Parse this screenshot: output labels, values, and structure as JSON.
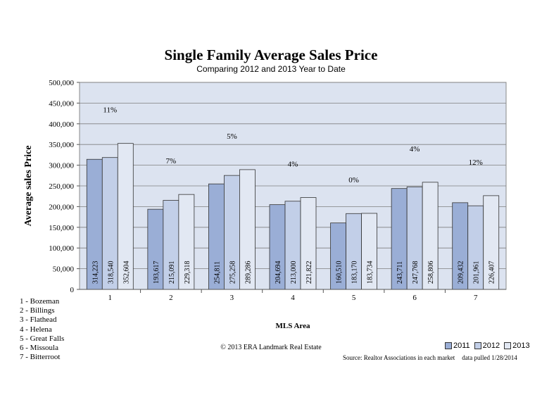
{
  "chart_data": {
    "type": "bar",
    "title": "Single Family Average Sales Price",
    "subtitle": "Comparing 2012 and 2013 Year to Date",
    "xlabel": "MLS Area",
    "ylabel": "Average sales Price",
    "ylim": [
      0,
      500000
    ],
    "yticks": [
      "0",
      "50,000",
      "100,000",
      "150,000",
      "200,000",
      "250,000",
      "300,000",
      "350,000",
      "400,000",
      "450,000",
      "500,000"
    ],
    "categories": [
      "1",
      "2",
      "3",
      "4",
      "5",
      "6",
      "7"
    ],
    "series": [
      {
        "name": "2011",
        "color": "#9AAED6",
        "values": [
          314223,
          193617,
          254811,
          204694,
          160510,
          243711,
          209432
        ],
        "labels": [
          "314,223",
          "193,617",
          "254,811",
          "204,694",
          "160,510",
          "243,711",
          "209,432"
        ]
      },
      {
        "name": "2012",
        "color": "#C2CFE8",
        "values": [
          318540,
          215091,
          275258,
          213000,
          183170,
          247768,
          201961
        ],
        "labels": [
          "318,540",
          "215,091",
          "275,258",
          "213,000",
          "183,170",
          "247,768",
          "201,961"
        ]
      },
      {
        "name": "2013",
        "color": "#E2E8F3",
        "values": [
          352604,
          229318,
          289286,
          221822,
          183734,
          258806,
          226407
        ],
        "labels": [
          "352,604",
          "229,318",
          "289,286",
          "221,822",
          "183,734",
          "258,806",
          "226,407"
        ]
      }
    ],
    "annotations": [
      "11%",
      "7%",
      "5%",
      "4%",
      "0%",
      "4%",
      "12%"
    ],
    "grid": true
  },
  "area_legend": [
    "1 - Bozeman",
    "2 - Billings",
    "3 - Flathead",
    "4 - Helena",
    "5 - Great Falls",
    "6 - Missoula",
    "7 - Bitterroot"
  ],
  "copyright": "© 2013 ERA Landmark Real Estate",
  "source": "Source: Realtor Associations in each market",
  "data_pulled": "data pulled 1/28/2014",
  "colors": {
    "plot_bg": "#DCE3F0",
    "bar_stroke": "#333333"
  }
}
